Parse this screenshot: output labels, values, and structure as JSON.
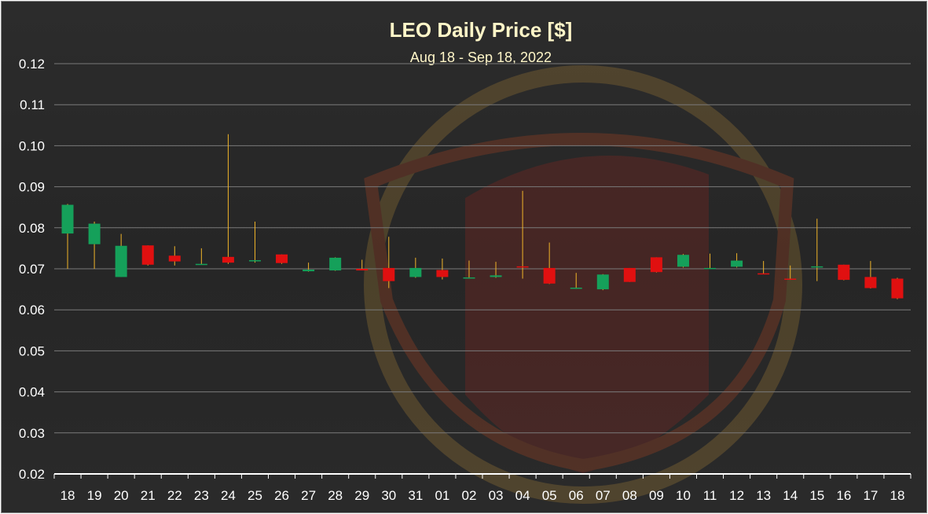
{
  "chart_data": {
    "type": "candlestick",
    "title": "LEO Daily Price [$]",
    "subtitle": "Aug 18 - Sep 18, 2022",
    "ylim": [
      0.02,
      0.12
    ],
    "yticks": [
      "0.12",
      "0.11",
      "0.10",
      "0.09",
      "0.08",
      "0.07",
      "0.06",
      "0.05",
      "0.04",
      "0.03",
      "0.02"
    ],
    "categories": [
      "18",
      "19",
      "20",
      "21",
      "22",
      "23",
      "24",
      "25",
      "26",
      "27",
      "28",
      "29",
      "30",
      "31",
      "01",
      "02",
      "03",
      "04",
      "05",
      "06",
      "07",
      "08",
      "09",
      "10",
      "11",
      "12",
      "13",
      "14",
      "15",
      "16",
      "17",
      "18"
    ],
    "candles": [
      {
        "open": 0.0786,
        "high": 0.0858,
        "low": 0.07,
        "close": 0.0856
      },
      {
        "open": 0.076,
        "high": 0.0815,
        "low": 0.07,
        "close": 0.081
      },
      {
        "open": 0.068,
        "high": 0.0785,
        "low": 0.068,
        "close": 0.0756
      },
      {
        "open": 0.0757,
        "high": 0.0757,
        "low": 0.0708,
        "close": 0.071
      },
      {
        "open": 0.0732,
        "high": 0.0755,
        "low": 0.0708,
        "close": 0.0718
      },
      {
        "open": 0.0711,
        "high": 0.075,
        "low": 0.071,
        "close": 0.0712
      },
      {
        "open": 0.0729,
        "high": 0.1028,
        "low": 0.0712,
        "close": 0.0715
      },
      {
        "open": 0.0719,
        "high": 0.0815,
        "low": 0.0715,
        "close": 0.0721
      },
      {
        "open": 0.0735,
        "high": 0.0735,
        "low": 0.0712,
        "close": 0.0714
      },
      {
        "open": 0.0694,
        "high": 0.0715,
        "low": 0.0693,
        "close": 0.0698
      },
      {
        "open": 0.0696,
        "high": 0.0728,
        "low": 0.0695,
        "close": 0.0727
      },
      {
        "open": 0.07,
        "high": 0.0722,
        "low": 0.0697,
        "close": 0.0696
      },
      {
        "open": 0.0702,
        "high": 0.0778,
        "low": 0.0653,
        "close": 0.067
      },
      {
        "open": 0.068,
        "high": 0.0727,
        "low": 0.0678,
        "close": 0.0702
      },
      {
        "open": 0.0697,
        "high": 0.0725,
        "low": 0.0674,
        "close": 0.068
      },
      {
        "open": 0.0677,
        "high": 0.072,
        "low": 0.0676,
        "close": 0.0679
      },
      {
        "open": 0.068,
        "high": 0.0717,
        "low": 0.0678,
        "close": 0.0684
      },
      {
        "open": 0.0706,
        "high": 0.089,
        "low": 0.0676,
        "close": 0.0704
      },
      {
        "open": 0.0702,
        "high": 0.0764,
        "low": 0.0663,
        "close": 0.0664
      },
      {
        "open": 0.0652,
        "high": 0.069,
        "low": 0.0651,
        "close": 0.0654
      },
      {
        "open": 0.065,
        "high": 0.0687,
        "low": 0.0648,
        "close": 0.0686
      },
      {
        "open": 0.0702,
        "high": 0.0702,
        "low": 0.0668,
        "close": 0.0668
      },
      {
        "open": 0.0728,
        "high": 0.0728,
        "low": 0.0691,
        "close": 0.0692
      },
      {
        "open": 0.0705,
        "high": 0.0736,
        "low": 0.0703,
        "close": 0.0734
      },
      {
        "open": 0.0701,
        "high": 0.0737,
        "low": 0.07,
        "close": 0.0702
      },
      {
        "open": 0.0705,
        "high": 0.0738,
        "low": 0.0703,
        "close": 0.072
      },
      {
        "open": 0.0689,
        "high": 0.0719,
        "low": 0.0687,
        "close": 0.0687
      },
      {
        "open": 0.0676,
        "high": 0.0708,
        "low": 0.0673,
        "close": 0.0675
      },
      {
        "open": 0.0704,
        "high": 0.0822,
        "low": 0.067,
        "close": 0.0706
      },
      {
        "open": 0.071,
        "high": 0.071,
        "low": 0.0672,
        "close": 0.0673
      },
      {
        "open": 0.068,
        "high": 0.0719,
        "low": 0.0652,
        "close": 0.0653
      },
      {
        "open": 0.0676,
        "high": 0.0678,
        "low": 0.0626,
        "close": 0.0628
      }
    ],
    "colors": {
      "up": "#15a05a",
      "down": "#e01010",
      "wick": "#f0b429",
      "grid": "#7a7a7a",
      "axis": "#ffffff"
    },
    "grid": true,
    "legend": "none"
  }
}
